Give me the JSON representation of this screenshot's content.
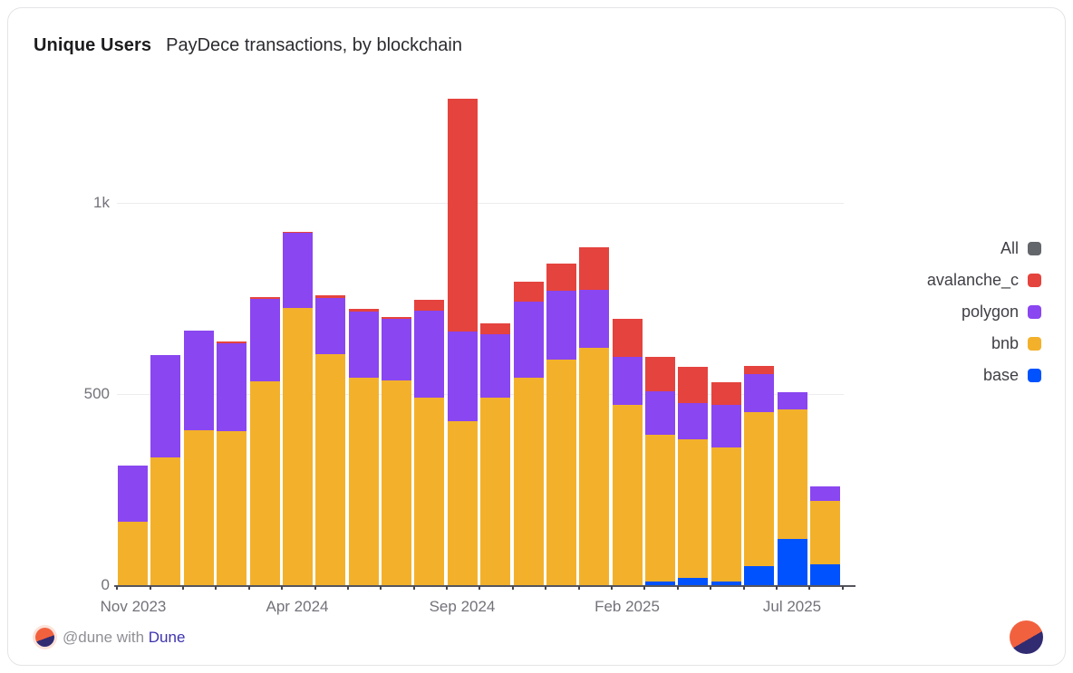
{
  "header": {
    "title": "Unique Users",
    "subtitle": "PayDece transactions, by blockchain"
  },
  "footer": {
    "attribution_prefix": "@dune with",
    "brand": "Dune"
  },
  "colors": {
    "all": "#63666B",
    "avalanche_c": "#E5433E",
    "polygon": "#8A46F0",
    "bnb": "#F3B12B",
    "base": "#0052FF",
    "grid": "#ECECEF",
    "axis_text": "#72727A"
  },
  "chart_data": {
    "type": "bar",
    "stacked": true,
    "title": "Unique Users — PayDece transactions, by blockchain",
    "xlabel": "",
    "ylabel": "",
    "ylim": [
      0,
      1310
    ],
    "grid": true,
    "legend_position": "right",
    "y_ticks": [
      {
        "label": "0",
        "value": 0
      },
      {
        "label": "500",
        "value": 500
      },
      {
        "label": "1k",
        "value": 1000
      }
    ],
    "x": [
      "Nov 2023",
      "Dec 2023",
      "Jan 2024",
      "Feb 2024",
      "Mar 2024",
      "Apr 2024",
      "May 2024",
      "Jun 2024",
      "Jul 2024",
      "Aug 2024",
      "Sep 2024",
      "Oct 2024",
      "Nov 2024",
      "Dec 2024",
      "Jan 2025",
      "Feb 2025",
      "Mar 2025",
      "Apr 2025",
      "May 2025",
      "Jun 2025",
      "Jul 2025",
      "Aug 2025"
    ],
    "x_tick_labels": [
      "Nov 2023",
      "Apr 2024",
      "Sep 2024",
      "Feb 2025",
      "Jul 2025"
    ],
    "x_tick_indices": [
      0,
      5,
      10,
      15,
      20
    ],
    "legend": [
      {
        "label": "All",
        "color": "#63666B"
      },
      {
        "label": "avalanche_c",
        "color": "#E5433E"
      },
      {
        "label": "polygon",
        "color": "#8A46F0"
      },
      {
        "label": "bnb",
        "color": "#F3B12B"
      },
      {
        "label": "base",
        "color": "#0052FF"
      }
    ],
    "series": [
      {
        "name": "base",
        "color": "#0052FF",
        "values": [
          0,
          0,
          0,
          0,
          0,
          0,
          0,
          0,
          0,
          0,
          0,
          0,
          0,
          0,
          0,
          0,
          10,
          18,
          9,
          50,
          121,
          55
        ]
      },
      {
        "name": "bnb",
        "color": "#F3B12B",
        "values": [
          167,
          334,
          406,
          404,
          534,
          724,
          605,
          542,
          536,
          490,
          430,
          491,
          543,
          591,
          620,
          471,
          385,
          363,
          351,
          402,
          338,
          167
        ]
      },
      {
        "name": "polygon",
        "color": "#8A46F0",
        "values": [
          148,
          267,
          260,
          229,
          216,
          196,
          146,
          172,
          160,
          227,
          234,
          166,
          200,
          181,
          152,
          126,
          113,
          94,
          112,
          99,
          45,
          38
        ]
      },
      {
        "name": "avalanche_c",
        "color": "#E5433E",
        "values": [
          0,
          0,
          0,
          5,
          5,
          2,
          7,
          6,
          5,
          29,
          610,
          29,
          53,
          72,
          111,
          99,
          89,
          94,
          59,
          22,
          0,
          0
        ]
      }
    ]
  }
}
